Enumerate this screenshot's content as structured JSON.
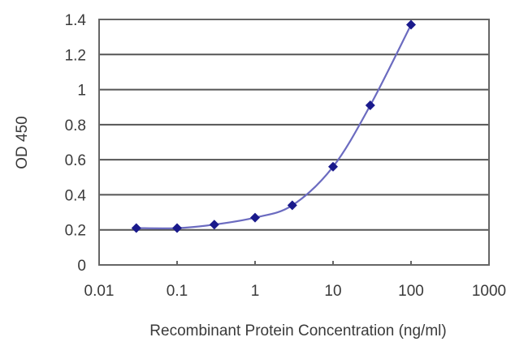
{
  "chart_data": {
    "type": "line",
    "title": "",
    "xlabel": "Recombinant Protein Concentration (ng/ml)",
    "ylabel": "OD 450",
    "x_scale": "log",
    "xlim": [
      0.01,
      1000
    ],
    "ylim": [
      0,
      1.4
    ],
    "x_ticks": [
      "0.01",
      "0.1",
      "1",
      "10",
      "100",
      "1000"
    ],
    "y_ticks": [
      "0",
      "0.2",
      "0.4",
      "0.6",
      "0.8",
      "1",
      "1.2",
      "1.4"
    ],
    "grid": {
      "horizontal": true,
      "vertical": false
    },
    "legend": null,
    "series": [
      {
        "name": "OD 450",
        "marker": "diamond",
        "color": "#1a1a8c",
        "line_color": "#6b6bc0",
        "x": [
          0.03,
          0.1,
          0.3,
          1,
          3,
          10,
          30,
          100
        ],
        "values": [
          0.21,
          0.21,
          0.23,
          0.27,
          0.34,
          0.56,
          0.91,
          1.37
        ]
      }
    ]
  },
  "colors": {
    "grid": "#555555",
    "axis": "#666666",
    "marker": "#1a1a8c",
    "line": "#6b6bc0",
    "text": "#3a3a3a"
  }
}
